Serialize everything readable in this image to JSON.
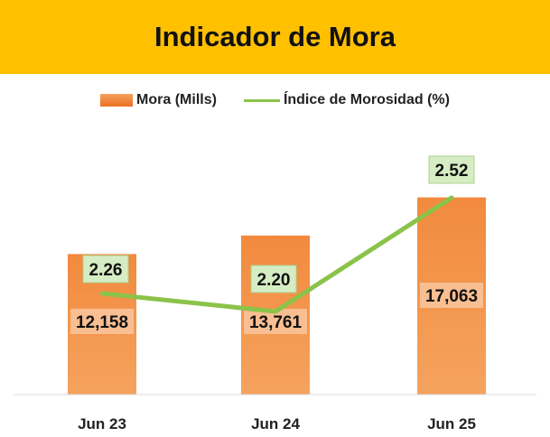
{
  "chart_data": {
    "type": "bar",
    "title": "Indicador de Mora",
    "categories": [
      "Jun 23",
      "Jun 24",
      "Jun 25"
    ],
    "series": [
      {
        "name": "Mora (Mills)",
        "type": "bar",
        "values": [
          12158,
          13761,
          17063
        ],
        "labels": [
          "12,158",
          "13,761",
          "17,063"
        ],
        "color": "#ED7D31"
      },
      {
        "name": "Índice de Morosidad (%)",
        "type": "line",
        "values": [
          2.26,
          2.2,
          2.52
        ],
        "labels": [
          "2.26",
          "2.20",
          "2.52"
        ],
        "color": "#8BC34A"
      }
    ],
    "legend_position": "top",
    "grid": false
  }
}
